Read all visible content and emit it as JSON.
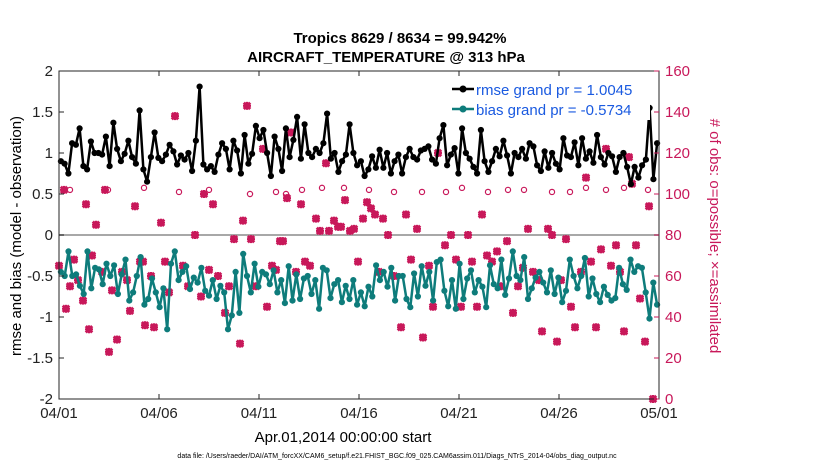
{
  "chart_data": {
    "type": "line",
    "title": "Tropics 8629 / 8634 = 99.942%",
    "subtitle": "AIRCRAFT_TEMPERATURE @ 313 hPa",
    "xlabel": "Apr.01,2014 00:00:00 start",
    "ylabel": "rmse and bias (model - observation)",
    "ylabel_right": "# of obs: o=possible; ×=assimilated",
    "xlim": [
      0,
      30
    ],
    "ylim": [
      -2,
      2
    ],
    "ylim_right": [
      0,
      160
    ],
    "x_ticks": [
      0,
      5,
      10,
      15,
      20,
      25,
      30
    ],
    "x_tick_labels": [
      "04/01",
      "04/06",
      "04/11",
      "04/16",
      "04/21",
      "04/26",
      "05/01"
    ],
    "y_ticks": [
      -2,
      -1.5,
      -1,
      -0.5,
      0,
      0.5,
      1,
      1.5,
      2
    ],
    "y_tick_labels": [
      "-2",
      "-1.5",
      "-1",
      "-0.5",
      "0",
      "0.5",
      "1",
      "1.5",
      "2"
    ],
    "y_ticks_right": [
      0,
      20,
      40,
      60,
      80,
      100,
      120,
      140,
      160
    ],
    "y_tick_labels_right": [
      "0",
      "20",
      "40",
      "60",
      "80",
      "100",
      "120",
      "140",
      "160"
    ],
    "legend_position": "top-right",
    "colors": {
      "rmse": "#000000",
      "bias": "#0e7c7b",
      "obs": "#c8185a",
      "zero_line": "#a8a8a8"
    },
    "series": [
      {
        "name": "rmse grand pr = 1.0045",
        "values": [
          0.9,
          0.87,
          0.75,
          1.12,
          1.1,
          1.3,
          0.84,
          0.8,
          1.14,
          1.0,
          1.0,
          0.98,
          1.2,
          0.84,
          1.37,
          1.05,
          0.9,
          0.99,
          1.15,
          0.95,
          0.87,
          1.52,
          0.8,
          0.65,
          0.95,
          1.25,
          0.94,
          0.9,
          0.98,
          1.1,
          1.02,
          0.86,
          0.97,
          0.92,
          1.0,
          0.78,
          1.15,
          1.81,
          0.86,
          0.8,
          0.84,
          0.77,
          0.98,
          1.12,
          1.05,
          0.8,
          1.15,
          1.03,
          0.75,
          1.22,
          0.87,
          0.99,
          1.33,
          1.18,
          1.28,
          1.0,
          0.72,
          1.2,
          1.05,
          0.78,
          1.3,
          0.95,
          1.16,
          1.44,
          0.93,
          1.35,
          1.0,
          0.95,
          1.05,
          1.0,
          1.12,
          1.48,
          0.93,
          1.0,
          0.77,
          0.9,
          0.98,
          1.35,
          1.0,
          0.85,
          0.9,
          0.72,
          0.8,
          0.96,
          0.82,
          1.04,
          0.82,
          1.0,
          0.75,
          0.9,
          0.98,
          0.75,
          0.95,
          1.05,
          0.95,
          0.92,
          1.03,
          1.05,
          1.08,
          0.92,
          0.87,
          1.18,
          1.34,
          0.85,
          0.98,
          1.06,
          0.75,
          1.3,
          1.0,
          0.93,
          0.83,
          0.75,
          1.28,
          0.9,
          0.77,
          0.9,
          1.05,
          0.96,
          1.15,
          0.97,
          0.75,
          1.0,
          0.95,
          1.05,
          0.93,
          1.12,
          1.08,
          0.85,
          0.78,
          1.02,
          0.82,
          1.0,
          0.87,
          0.8,
          1.18,
          0.97,
          0.95,
          1.13,
          0.85,
          1.18,
          0.93,
          1.02,
          0.88,
          1.22,
          0.95,
          0.86,
          1.0,
          0.96,
          0.77,
          0.95,
          1.0,
          0.83,
          0.62,
          0.83,
          0.7,
          0.85,
          0.92,
          1.55,
          0.68,
          1.12
        ]
      },
      {
        "name": "bias grand pr = -0.5734",
        "values": [
          -0.45,
          -0.5,
          -0.2,
          -0.5,
          -0.48,
          -0.62,
          -0.72,
          -0.2,
          -0.65,
          -0.4,
          -0.42,
          -0.6,
          -0.35,
          -0.5,
          -0.37,
          -0.72,
          -0.48,
          -0.3,
          -0.8,
          -0.7,
          -0.5,
          -0.27,
          -0.85,
          -0.78,
          -0.53,
          -0.7,
          -0.88,
          -0.65,
          -1.15,
          -0.35,
          -0.2,
          -0.55,
          -0.45,
          -0.38,
          -0.66,
          -0.52,
          -0.58,
          -0.4,
          -0.68,
          -0.74,
          -0.55,
          -0.78,
          -0.62,
          -0.7,
          -1.15,
          -0.98,
          -0.45,
          -0.95,
          -0.23,
          -0.5,
          -0.7,
          -0.35,
          -0.63,
          -0.45,
          -0.48,
          -0.6,
          -0.43,
          -0.7,
          -0.55,
          -0.83,
          -0.38,
          -0.8,
          -0.48,
          -0.78,
          -0.53,
          -0.5,
          -0.72,
          -0.55,
          -0.9,
          -0.4,
          -0.43,
          -0.77,
          -0.6,
          -0.55,
          -0.82,
          -0.62,
          -0.78,
          -0.55,
          -0.85,
          -0.7,
          -0.87,
          -0.63,
          -0.75,
          -0.37,
          -0.55,
          -0.45,
          -0.63,
          -0.4,
          -0.8,
          -0.5,
          -0.5,
          -0.78,
          -0.88,
          -0.47,
          -0.75,
          -0.38,
          -0.62,
          -0.45,
          -0.8,
          -0.33,
          -0.3,
          -0.68,
          -0.87,
          -0.55,
          -0.9,
          -0.35,
          -0.78,
          -0.53,
          -0.43,
          -0.7,
          -0.55,
          -0.63,
          -0.88,
          -0.37,
          -0.6,
          -0.65,
          -0.3,
          -0.73,
          -0.53,
          -0.2,
          -0.5,
          -0.55,
          -0.27,
          -0.78,
          -0.65,
          -0.52,
          -0.45,
          -0.58,
          -0.7,
          -0.43,
          -0.72,
          -0.52,
          -0.82,
          -0.68,
          -0.3,
          -0.5,
          -0.65,
          -0.5,
          -0.28,
          -0.75,
          -0.53,
          -0.72,
          -0.82,
          -0.63,
          -0.73,
          -0.8,
          -0.77,
          -0.4,
          -0.6,
          -0.67,
          -0.3,
          -0.45,
          -0.38,
          -0.4,
          -0.7,
          -1.02,
          -0.58,
          -0.85
        ]
      }
    ],
    "obs_possible": [
      {
        "x": 0.55,
        "y": 102
      },
      {
        "x": 2.45,
        "y": 102
      },
      {
        "x": 4.25,
        "y": 103
      },
      {
        "x": 6.0,
        "y": 101
      },
      {
        "x": 7.5,
        "y": 102
      },
      {
        "x": 9.55,
        "y": 100
      },
      {
        "x": 10.85,
        "y": 101
      },
      {
        "x": 11.35,
        "y": 100
      },
      {
        "x": 12.15,
        "y": 102
      },
      {
        "x": 13.15,
        "y": 103
      },
      {
        "x": 14.25,
        "y": 103
      },
      {
        "x": 15.5,
        "y": 102
      },
      {
        "x": 16.75,
        "y": 101
      },
      {
        "x": 18.15,
        "y": 101
      },
      {
        "x": 19.35,
        "y": 101
      },
      {
        "x": 20.15,
        "y": 103
      },
      {
        "x": 21.45,
        "y": 101
      },
      {
        "x": 22.45,
        "y": 102
      },
      {
        "x": 23.25,
        "y": 102
      },
      {
        "x": 24.65,
        "y": 101
      },
      {
        "x": 25.55,
        "y": 101
      },
      {
        "x": 26.35,
        "y": 103
      },
      {
        "x": 27.35,
        "y": 102
      },
      {
        "x": 28.25,
        "y": 103
      },
      {
        "x": 29.45,
        "y": 102
      }
    ],
    "obs_assimilated": [
      {
        "x": 0.0,
        "y": 65
      },
      {
        "x": 0.25,
        "y": 102
      },
      {
        "x": 0.35,
        "y": 44
      },
      {
        "x": 0.55,
        "y": 55
      },
      {
        "x": 0.75,
        "y": 68
      },
      {
        "x": 0.95,
        "y": 58
      },
      {
        "x": 1.2,
        "y": 48
      },
      {
        "x": 1.35,
        "y": 95
      },
      {
        "x": 1.5,
        "y": 34
      },
      {
        "x": 1.65,
        "y": 70
      },
      {
        "x": 1.85,
        "y": 85
      },
      {
        "x": 2.15,
        "y": 62
      },
      {
        "x": 2.3,
        "y": 102
      },
      {
        "x": 2.5,
        "y": 23
      },
      {
        "x": 2.65,
        "y": 53
      },
      {
        "x": 2.9,
        "y": 29
      },
      {
        "x": 3.15,
        "y": 62
      },
      {
        "x": 3.4,
        "y": 58
      },
      {
        "x": 3.55,
        "y": 43
      },
      {
        "x": 3.8,
        "y": 94
      },
      {
        "x": 4.05,
        "y": 67
      },
      {
        "x": 4.2,
        "y": 67
      },
      {
        "x": 4.3,
        "y": 36
      },
      {
        "x": 4.6,
        "y": 60
      },
      {
        "x": 4.75,
        "y": 35
      },
      {
        "x": 5.1,
        "y": 86
      },
      {
        "x": 5.3,
        "y": 67
      },
      {
        "x": 5.5,
        "y": 52
      },
      {
        "x": 5.8,
        "y": 138
      },
      {
        "x": 6.2,
        "y": 65
      },
      {
        "x": 6.45,
        "y": 55
      },
      {
        "x": 6.8,
        "y": 80
      },
      {
        "x": 7.1,
        "y": 50
      },
      {
        "x": 7.25,
        "y": 100
      },
      {
        "x": 7.5,
        "y": 63
      },
      {
        "x": 7.7,
        "y": 95
      },
      {
        "x": 7.95,
        "y": 60
      },
      {
        "x": 8.3,
        "y": 42
      },
      {
        "x": 8.5,
        "y": 55
      },
      {
        "x": 8.75,
        "y": 78
      },
      {
        "x": 9.05,
        "y": 27
      },
      {
        "x": 9.2,
        "y": 87
      },
      {
        "x": 9.4,
        "y": 143
      },
      {
        "x": 9.6,
        "y": 78
      },
      {
        "x": 9.85,
        "y": 55
      },
      {
        "x": 10.2,
        "y": 122
      },
      {
        "x": 10.4,
        "y": 45
      },
      {
        "x": 10.65,
        "y": 65
      },
      {
        "x": 10.85,
        "y": 63
      },
      {
        "x": 11.05,
        "y": 77
      },
      {
        "x": 11.2,
        "y": 77
      },
      {
        "x": 11.4,
        "y": 98
      },
      {
        "x": 11.6,
        "y": 130
      },
      {
        "x": 11.85,
        "y": 62
      },
      {
        "x": 12.1,
        "y": 95
      },
      {
        "x": 12.3,
        "y": 67
      },
      {
        "x": 12.55,
        "y": 65
      },
      {
        "x": 12.85,
        "y": 88
      },
      {
        "x": 13.05,
        "y": 82
      },
      {
        "x": 13.35,
        "y": 115
      },
      {
        "x": 13.5,
        "y": 82
      },
      {
        "x": 13.75,
        "y": 87
      },
      {
        "x": 13.95,
        "y": 84
      },
      {
        "x": 14.1,
        "y": 84
      },
      {
        "x": 14.3,
        "y": 97
      },
      {
        "x": 14.55,
        "y": 82
      },
      {
        "x": 14.75,
        "y": 83
      },
      {
        "x": 14.95,
        "y": 67
      },
      {
        "x": 15.2,
        "y": 88
      },
      {
        "x": 15.4,
        "y": 96
      },
      {
        "x": 15.6,
        "y": 93
      },
      {
        "x": 15.8,
        "y": 90
      },
      {
        "x": 16.0,
        "y": 62
      },
      {
        "x": 16.2,
        "y": 88
      },
      {
        "x": 16.45,
        "y": 80
      },
      {
        "x": 16.75,
        "y": 60
      },
      {
        "x": 17.1,
        "y": 35
      },
      {
        "x": 17.35,
        "y": 90
      },
      {
        "x": 17.6,
        "y": 68
      },
      {
        "x": 17.9,
        "y": 83
      },
      {
        "x": 18.2,
        "y": 30
      },
      {
        "x": 18.5,
        "y": 65
      },
      {
        "x": 18.7,
        "y": 45
      },
      {
        "x": 18.95,
        "y": 120
      },
      {
        "x": 19.3,
        "y": 75
      },
      {
        "x": 19.6,
        "y": 80
      },
      {
        "x": 19.85,
        "y": 68
      },
      {
        "x": 20.1,
        "y": 45
      },
      {
        "x": 20.45,
        "y": 80
      },
      {
        "x": 20.65,
        "y": 67
      },
      {
        "x": 20.9,
        "y": 45
      },
      {
        "x": 21.15,
        "y": 90
      },
      {
        "x": 21.4,
        "y": 70
      },
      {
        "x": 21.65,
        "y": 67
      },
      {
        "x": 21.9,
        "y": 72
      },
      {
        "x": 22.1,
        "y": 55
      },
      {
        "x": 22.4,
        "y": 77
      },
      {
        "x": 22.7,
        "y": 42
      },
      {
        "x": 22.95,
        "y": 55
      },
      {
        "x": 23.2,
        "y": 64
      },
      {
        "x": 23.45,
        "y": 83
      },
      {
        "x": 23.7,
        "y": 62
      },
      {
        "x": 24.0,
        "y": 58
      },
      {
        "x": 24.15,
        "y": 33
      },
      {
        "x": 24.45,
        "y": 83
      },
      {
        "x": 24.65,
        "y": 80
      },
      {
        "x": 24.9,
        "y": 28
      },
      {
        "x": 25.1,
        "y": 58
      },
      {
        "x": 25.35,
        "y": 78
      },
      {
        "x": 25.6,
        "y": 45
      },
      {
        "x": 25.8,
        "y": 35
      },
      {
        "x": 26.1,
        "y": 62
      },
      {
        "x": 26.35,
        "y": 108
      },
      {
        "x": 26.6,
        "y": 67
      },
      {
        "x": 26.85,
        "y": 35
      },
      {
        "x": 27.1,
        "y": 73
      },
      {
        "x": 27.35,
        "y": 122
      },
      {
        "x": 27.6,
        "y": 65
      },
      {
        "x": 27.85,
        "y": 75
      },
      {
        "x": 28.05,
        "y": 62
      },
      {
        "x": 28.25,
        "y": 33
      },
      {
        "x": 28.5,
        "y": 118
      },
      {
        "x": 28.65,
        "y": 105
      },
      {
        "x": 28.85,
        "y": 75
      },
      {
        "x": 29.05,
        "y": 49
      },
      {
        "x": 29.3,
        "y": 28
      },
      {
        "x": 29.5,
        "y": 94
      },
      {
        "x": 29.7,
        "y": 0
      }
    ]
  },
  "footer": "data file: /Users/raeder/DAI/ATM_forcXX/CAM6_setup/f.e21.FHIST_BGC.f09_025.CAM6assim.011/Diags_NTrS_2014-04/obs_diag_output.nc"
}
